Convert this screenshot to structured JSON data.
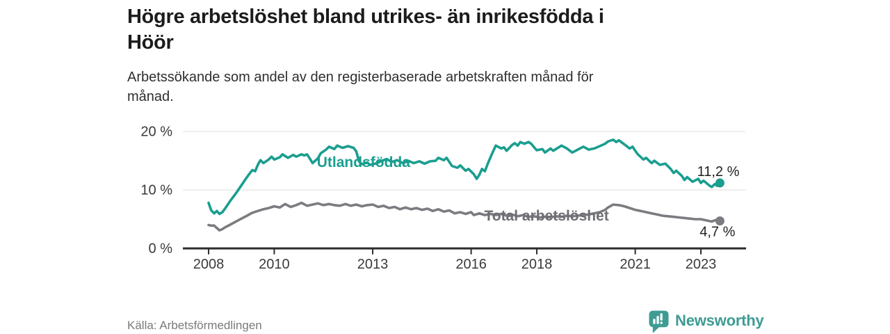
{
  "header": {
    "title": "Högre arbetslöshet bland utrikes- än inrikesfödda i Höör",
    "title_lines": [
      "Högre arbetslöshet bland utrikes- än inrikesfödda i",
      "Höör"
    ],
    "subtitle": "Arbetssökande som andel av den registerbaserade arbetskraften månad för månad.",
    "subtitle_lines": [
      "Arbetssökande som andel av den registerbaserade arbetskraften månad för",
      "månad."
    ]
  },
  "footer": {
    "source": "Källa: Arbetsförmedlingen",
    "brand": "Newsworthy",
    "brand_icon": "newsworthy-speech-bubble-bar-chart-icon",
    "brand_color": "#3E9C94"
  },
  "colors": {
    "foreign_born_line": "#1A9E8F",
    "total_line": "#7B7B80",
    "total_label_text": "#6E6E73",
    "grid": "#E4E4E4",
    "axis": "#2D2D2D",
    "axis_text": "#3A3A3A",
    "end_label_text": "#1F1F1F"
  },
  "chart_data": {
    "type": "line",
    "title": "Högre arbetslöshet bland utrikes- än inrikesfödda i Höör",
    "subtitle": "Arbetssökande som andel av den registerbaserade arbetskraften månad för månad.",
    "xlabel": "",
    "ylabel": "",
    "x_ticks": [
      2008,
      2010,
      2013,
      2016,
      2018,
      2021,
      2023
    ],
    "y_ticks": [
      {
        "value": 0,
        "label": "0 %"
      },
      {
        "value": 10,
        "label": "10 %"
      },
      {
        "value": 20,
        "label": "20 %"
      }
    ],
    "xlim": [
      2007.2,
      2024.4
    ],
    "ylim": [
      0,
      21.5
    ],
    "grid": "horizontal-only",
    "legend_position": "inline-labels",
    "annotations": [
      {
        "text": "Utlandsfödda",
        "x": 2011.3,
        "y": 13.9,
        "color": "#1A9E8F",
        "role": "series-label"
      },
      {
        "text": "Total arbetslöshet",
        "x": 2016.4,
        "y": 4.75,
        "color": "#6E6E73",
        "role": "series-label"
      }
    ],
    "series": [
      {
        "name": "Utlandsfödda",
        "color": "#1A9E8F",
        "end_label": "11,2 %",
        "end_value": 11.2,
        "end_label_position": "above",
        "points": [
          [
            2008.0,
            7.8
          ],
          [
            2008.08,
            6.5
          ],
          [
            2008.17,
            6.0
          ],
          [
            2008.25,
            6.4
          ],
          [
            2008.33,
            5.9
          ],
          [
            2008.42,
            6.2
          ],
          [
            2008.5,
            6.8
          ],
          [
            2008.67,
            8.2
          ],
          [
            2008.83,
            9.4
          ],
          [
            2009.0,
            10.8
          ],
          [
            2009.17,
            12.2
          ],
          [
            2009.33,
            13.4
          ],
          [
            2009.42,
            13.2
          ],
          [
            2009.5,
            14.3
          ],
          [
            2009.58,
            15.1
          ],
          [
            2009.67,
            14.6
          ],
          [
            2009.83,
            15.2
          ],
          [
            2009.92,
            15.7
          ],
          [
            2010.0,
            15.2
          ],
          [
            2010.17,
            15.6
          ],
          [
            2010.25,
            16.1
          ],
          [
            2010.42,
            15.5
          ],
          [
            2010.58,
            16.0
          ],
          [
            2010.67,
            15.7
          ],
          [
            2010.83,
            16.1
          ],
          [
            2010.92,
            15.9
          ],
          [
            2011.0,
            16.1
          ],
          [
            2011.08,
            15.4
          ],
          [
            2011.17,
            14.6
          ],
          [
            2011.33,
            15.4
          ],
          [
            2011.42,
            16.3
          ],
          [
            2011.58,
            16.9
          ],
          [
            2011.67,
            17.4
          ],
          [
            2011.83,
            17.0
          ],
          [
            2011.92,
            17.6
          ],
          [
            2012.08,
            17.2
          ],
          [
            2012.25,
            17.5
          ],
          [
            2012.42,
            17.2
          ],
          [
            2012.5,
            16.6
          ],
          [
            2012.58,
            14.9
          ],
          [
            2012.67,
            14.4
          ],
          [
            2012.83,
            14.7
          ],
          [
            2012.92,
            14.3
          ],
          [
            2013.08,
            14.5
          ],
          [
            2013.25,
            14.9
          ],
          [
            2013.42,
            15.3
          ],
          [
            2013.58,
            14.8
          ],
          [
            2013.75,
            15.1
          ],
          [
            2013.92,
            14.6
          ],
          [
            2014.08,
            15.0
          ],
          [
            2014.25,
            14.6
          ],
          [
            2014.42,
            14.9
          ],
          [
            2014.58,
            14.5
          ],
          [
            2014.75,
            14.9
          ],
          [
            2014.92,
            15.0
          ],
          [
            2015.0,
            15.5
          ],
          [
            2015.17,
            15.1
          ],
          [
            2015.25,
            15.5
          ],
          [
            2015.42,
            14.1
          ],
          [
            2015.58,
            13.8
          ],
          [
            2015.67,
            14.2
          ],
          [
            2015.83,
            13.3
          ],
          [
            2015.92,
            13.6
          ],
          [
            2016.08,
            12.7
          ],
          [
            2016.17,
            11.9
          ],
          [
            2016.25,
            12.6
          ],
          [
            2016.33,
            13.6
          ],
          [
            2016.42,
            13.2
          ],
          [
            2016.5,
            14.4
          ],
          [
            2016.62,
            16.0
          ],
          [
            2016.75,
            17.6
          ],
          [
            2016.92,
            17.1
          ],
          [
            2017.0,
            17.3
          ],
          [
            2017.08,
            16.7
          ],
          [
            2017.25,
            17.7
          ],
          [
            2017.33,
            18.0
          ],
          [
            2017.42,
            17.6
          ],
          [
            2017.5,
            18.2
          ],
          [
            2017.62,
            17.9
          ],
          [
            2017.75,
            18.2
          ],
          [
            2017.83,
            17.9
          ],
          [
            2017.92,
            17.3
          ],
          [
            2018.0,
            16.8
          ],
          [
            2018.17,
            17.0
          ],
          [
            2018.25,
            16.4
          ],
          [
            2018.42,
            17.1
          ],
          [
            2018.5,
            16.7
          ],
          [
            2018.67,
            17.3
          ],
          [
            2018.75,
            17.6
          ],
          [
            2018.92,
            17.1
          ],
          [
            2019.08,
            16.4
          ],
          [
            2019.25,
            16.9
          ],
          [
            2019.42,
            17.4
          ],
          [
            2019.58,
            16.9
          ],
          [
            2019.75,
            17.1
          ],
          [
            2019.92,
            17.5
          ],
          [
            2020.08,
            17.9
          ],
          [
            2020.17,
            18.3
          ],
          [
            2020.33,
            18.6
          ],
          [
            2020.42,
            18.2
          ],
          [
            2020.5,
            18.5
          ],
          [
            2020.67,
            17.8
          ],
          [
            2020.83,
            17.1
          ],
          [
            2020.92,
            17.4
          ],
          [
            2021.0,
            16.7
          ],
          [
            2021.08,
            16.1
          ],
          [
            2021.25,
            15.2
          ],
          [
            2021.33,
            15.5
          ],
          [
            2021.5,
            14.6
          ],
          [
            2021.58,
            15.0
          ],
          [
            2021.75,
            14.3
          ],
          [
            2021.92,
            14.5
          ],
          [
            2022.08,
            13.6
          ],
          [
            2022.17,
            12.9
          ],
          [
            2022.25,
            13.3
          ],
          [
            2022.42,
            12.4
          ],
          [
            2022.5,
            11.7
          ],
          [
            2022.58,
            12.2
          ],
          [
            2022.75,
            11.4
          ],
          [
            2022.92,
            11.9
          ],
          [
            2023.0,
            11.2
          ],
          [
            2023.08,
            11.6
          ],
          [
            2023.25,
            10.8
          ],
          [
            2023.33,
            10.5
          ],
          [
            2023.42,
            11.0
          ],
          [
            2023.5,
            10.7
          ],
          [
            2023.58,
            11.2
          ]
        ]
      },
      {
        "name": "Total arbetslöshet",
        "color": "#7B7B80",
        "end_label": "4,7 %",
        "end_value": 4.7,
        "end_label_position": "below",
        "points": [
          [
            2008.0,
            4.0
          ],
          [
            2008.08,
            3.9
          ],
          [
            2008.17,
            3.9
          ],
          [
            2008.25,
            3.5
          ],
          [
            2008.33,
            3.1
          ],
          [
            2008.42,
            3.3
          ],
          [
            2008.5,
            3.6
          ],
          [
            2008.67,
            4.1
          ],
          [
            2008.83,
            4.6
          ],
          [
            2009.0,
            5.1
          ],
          [
            2009.17,
            5.6
          ],
          [
            2009.33,
            6.1
          ],
          [
            2009.5,
            6.4
          ],
          [
            2009.67,
            6.7
          ],
          [
            2009.83,
            6.9
          ],
          [
            2010.0,
            7.2
          ],
          [
            2010.17,
            7.0
          ],
          [
            2010.33,
            7.6
          ],
          [
            2010.5,
            7.1
          ],
          [
            2010.67,
            7.4
          ],
          [
            2010.83,
            7.8
          ],
          [
            2011.0,
            7.3
          ],
          [
            2011.17,
            7.5
          ],
          [
            2011.33,
            7.7
          ],
          [
            2011.5,
            7.4
          ],
          [
            2011.67,
            7.6
          ],
          [
            2011.83,
            7.4
          ],
          [
            2012.0,
            7.3
          ],
          [
            2012.17,
            7.6
          ],
          [
            2012.33,
            7.3
          ],
          [
            2012.5,
            7.5
          ],
          [
            2012.67,
            7.2
          ],
          [
            2012.83,
            7.4
          ],
          [
            2013.0,
            7.5
          ],
          [
            2013.17,
            7.1
          ],
          [
            2013.33,
            7.3
          ],
          [
            2013.5,
            6.9
          ],
          [
            2013.67,
            7.1
          ],
          [
            2013.83,
            6.7
          ],
          [
            2014.0,
            7.0
          ],
          [
            2014.17,
            6.7
          ],
          [
            2014.33,
            6.9
          ],
          [
            2014.5,
            6.6
          ],
          [
            2014.67,
            6.8
          ],
          [
            2014.83,
            6.4
          ],
          [
            2015.0,
            6.7
          ],
          [
            2015.17,
            6.3
          ],
          [
            2015.33,
            6.5
          ],
          [
            2015.5,
            6.0
          ],
          [
            2015.67,
            6.2
          ],
          [
            2015.83,
            5.9
          ],
          [
            2016.0,
            6.2
          ],
          [
            2016.08,
            5.7
          ],
          [
            2016.25,
            6.0
          ],
          [
            2016.42,
            5.7
          ],
          [
            2016.58,
            5.9
          ],
          [
            2016.75,
            5.7
          ],
          [
            2016.92,
            5.9
          ],
          [
            2017.08,
            5.6
          ],
          [
            2017.25,
            5.8
          ],
          [
            2017.42,
            5.5
          ],
          [
            2017.58,
            5.7
          ],
          [
            2017.75,
            5.4
          ],
          [
            2017.92,
            5.5
          ],
          [
            2018.08,
            5.3
          ],
          [
            2018.25,
            5.4
          ],
          [
            2018.42,
            5.3
          ],
          [
            2018.58,
            5.5
          ],
          [
            2018.75,
            5.4
          ],
          [
            2018.92,
            5.6
          ],
          [
            2019.08,
            5.5
          ],
          [
            2019.25,
            5.6
          ],
          [
            2019.42,
            5.7
          ],
          [
            2019.58,
            5.8
          ],
          [
            2019.75,
            6.0
          ],
          [
            2019.92,
            6.2
          ],
          [
            2020.08,
            6.6
          ],
          [
            2020.17,
            7.0
          ],
          [
            2020.33,
            7.5
          ],
          [
            2020.5,
            7.4
          ],
          [
            2020.67,
            7.2
          ],
          [
            2020.83,
            6.9
          ],
          [
            2021.0,
            6.6
          ],
          [
            2021.17,
            6.4
          ],
          [
            2021.33,
            6.2
          ],
          [
            2021.5,
            6.0
          ],
          [
            2021.67,
            5.8
          ],
          [
            2021.83,
            5.6
          ],
          [
            2022.0,
            5.5
          ],
          [
            2022.17,
            5.4
          ],
          [
            2022.33,
            5.3
          ],
          [
            2022.5,
            5.2
          ],
          [
            2022.67,
            5.1
          ],
          [
            2022.83,
            5.0
          ],
          [
            2023.0,
            5.0
          ],
          [
            2023.17,
            4.8
          ],
          [
            2023.33,
            4.6
          ],
          [
            2023.42,
            4.8
          ],
          [
            2023.5,
            4.9
          ],
          [
            2023.58,
            4.7
          ]
        ]
      }
    ]
  }
}
